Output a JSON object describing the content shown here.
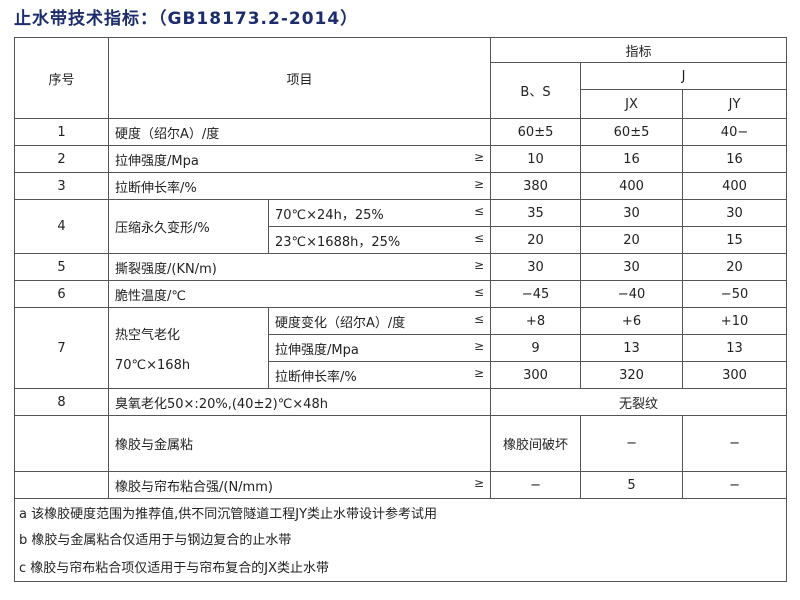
{
  "title": "止水带技术指标：（GB18173.2-2014）",
  "header": {
    "no": "序号",
    "item": "项目",
    "index": "指标",
    "bs": "B、S",
    "j": "J",
    "jx": "JX",
    "jy": "JY"
  },
  "rows": [
    {
      "no": "1",
      "item": "硬度（绍尔A）/度",
      "sign": "",
      "bs": "60±5",
      "jx": "60±5",
      "jy": "40−"
    },
    {
      "no": "2",
      "item": "拉伸强度/Mpa",
      "sign": "≥",
      "bs": "10",
      "jx": "16",
      "jy": "16"
    },
    {
      "no": "3",
      "item": "拉断伸长率/%",
      "sign": "≥",
      "bs": "380",
      "jx": "400",
      "jy": "400"
    },
    {
      "no": "4",
      "item": "压缩永久变形/%",
      "subs": [
        {
          "cond": "70℃×24h，25%",
          "sign": "≤",
          "bs": "35",
          "jx": "30",
          "jy": "30"
        },
        {
          "cond": "23℃×1688h，25%",
          "sign": "≤",
          "bs": "20",
          "jx": "20",
          "jy": "15"
        }
      ]
    },
    {
      "no": "5",
      "item": "撕裂强度/(KN/m)",
      "sign": "≥",
      "bs": "30",
      "jx": "30",
      "jy": "20"
    },
    {
      "no": "6",
      "item": "脆性温度/℃",
      "sign": "≤",
      "bs": "−45",
      "jx": "−40",
      "jy": "−50"
    },
    {
      "no": "7",
      "item": "热空气老化",
      "item2": "70℃×168h",
      "subs": [
        {
          "cond": "硬度变化（绍尔A）/度",
          "sign": "≤",
          "bs": "+8",
          "jx": "+6",
          "jy": "+10"
        },
        {
          "cond": "拉伸强度/Mpa",
          "sign": "≥",
          "bs": "9",
          "jx": "13",
          "jy": "13"
        },
        {
          "cond": "拉断伸长率/%",
          "sign": "≥",
          "bs": "300",
          "jx": "320",
          "jy": "300"
        }
      ]
    },
    {
      "no": "8",
      "item": "臭氧老化50×:20%,(40±2)℃×48h",
      "value": "无裂纹"
    },
    {
      "no": "",
      "item": "橡胶与金属粘",
      "sign": "",
      "bs": "橡胶间破坏",
      "jx": "−",
      "jy": "−"
    },
    {
      "no": "",
      "item": "橡胶与帘布粘合强/(N/mm)",
      "sign": "≥",
      "bs": "−",
      "jx": "5",
      "jy": "−"
    }
  ],
  "notes": [
    "a 该橡胶硬度范围为推荐值,供不同沉管隧道工程JY类止水带设计参考试用",
    "b 橡胶与金属粘合仅适用于与钢边复合的止水带",
    "c 橡胶与帘布粘合项仅适用于与帘布复合的JX类止水带"
  ]
}
